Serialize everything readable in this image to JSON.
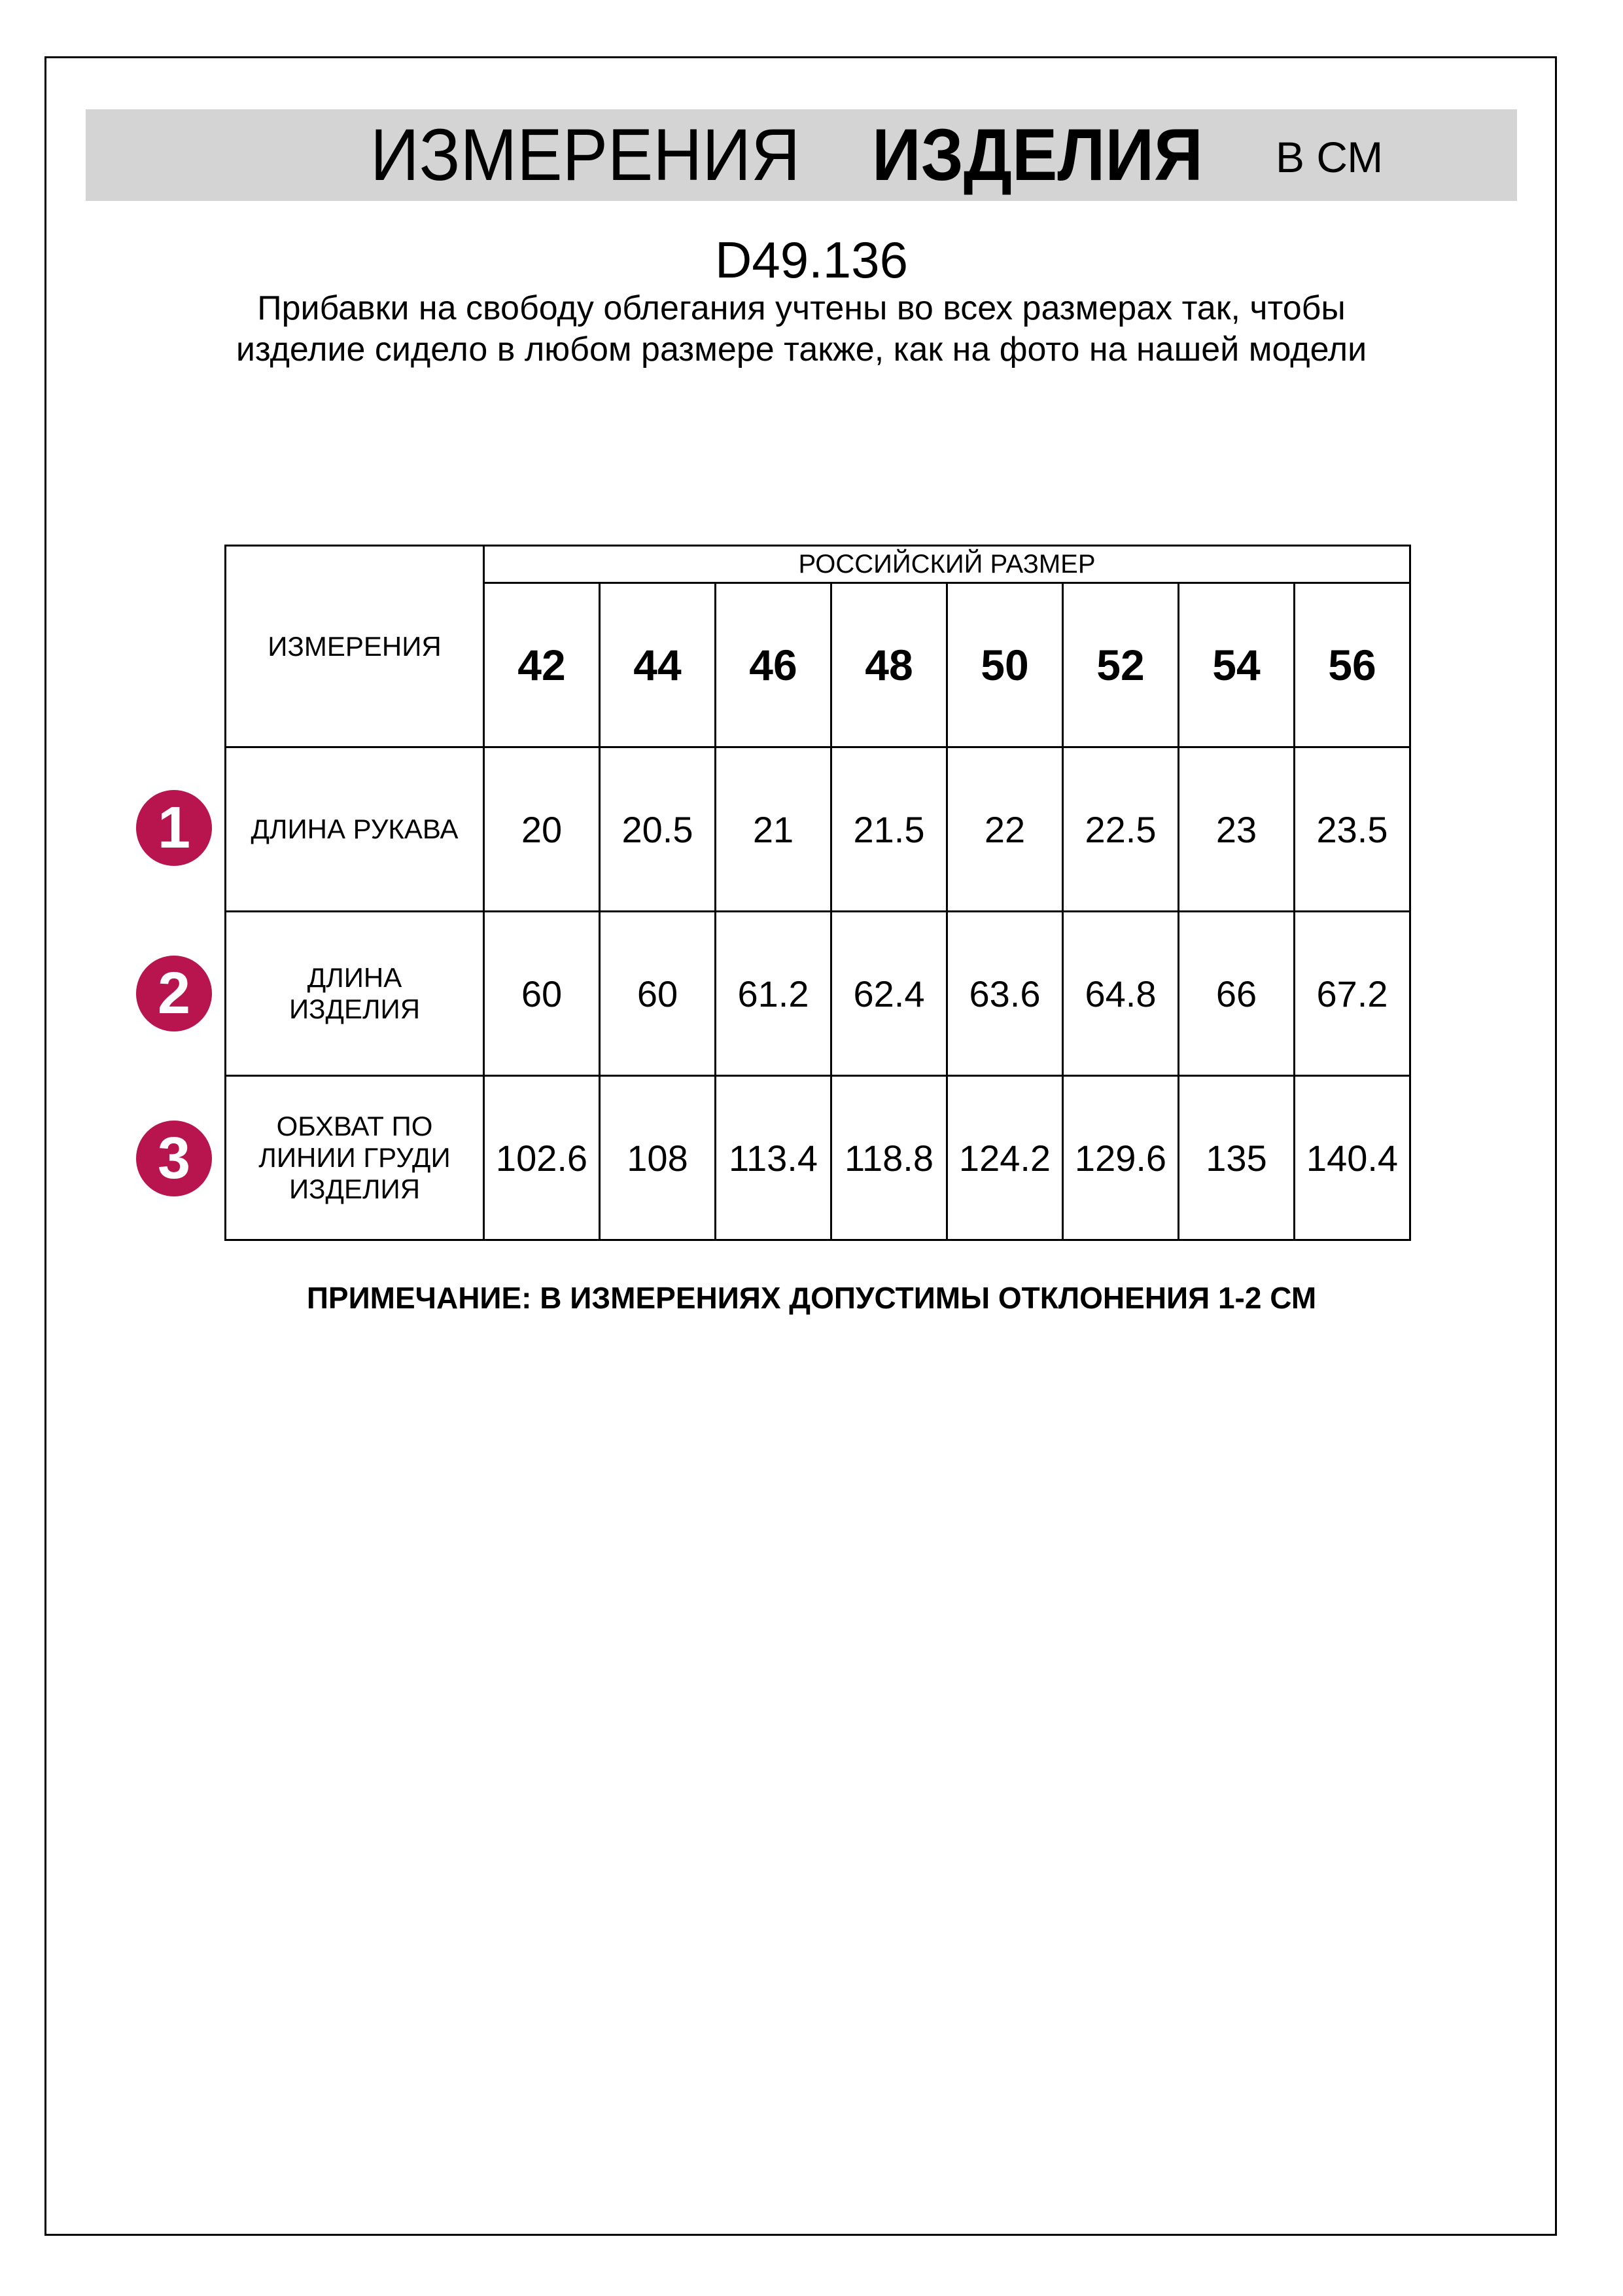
{
  "header": {
    "title_regular": "ИЗМЕРЕНИЯ",
    "title_bold": "ИЗДЕЛИЯ",
    "unit": "в см",
    "band_color": "#d4d4d4"
  },
  "product_code": "D49.136",
  "description": "Прибавки на свободу облегания учтены во всех размерах так, чтобы изделие сидело в любом размере также, как на фото на нашей модели",
  "table": {
    "corner_label": "ИЗМЕРЕНИЯ",
    "group_label": "РОССИЙСКИЙ РАЗМЕР",
    "sizes": [
      "42",
      "44",
      "46",
      "48",
      "50",
      "52",
      "54",
      "56"
    ],
    "rows": [
      {
        "number": "1",
        "label": "ДЛИНА РУКАВА",
        "values": [
          "20",
          "20.5",
          "21",
          "21.5",
          "22",
          "22.5",
          "23",
          "23.5"
        ]
      },
      {
        "number": "2",
        "label": "ДЛИНА ИЗДЕЛИЯ",
        "values": [
          "60",
          "60",
          "61.2",
          "62.4",
          "63.6",
          "64.8",
          "66",
          "67.2"
        ]
      },
      {
        "number": "3",
        "label": "ОБХВАТ ПО ЛИНИИ ГРУДИ ИЗДЕЛИЯ",
        "values": [
          "102.6",
          "108",
          "113.4",
          "118.8",
          "124.2",
          "129.6",
          "135",
          "140.4"
        ]
      }
    ],
    "marker_color": "#b8154f"
  },
  "note": "ПРИМЕЧАНИЕ: В ИЗМЕРЕНИЯХ ДОПУСТИМЫ ОТКЛОНЕНИЯ 1-2 СМ"
}
